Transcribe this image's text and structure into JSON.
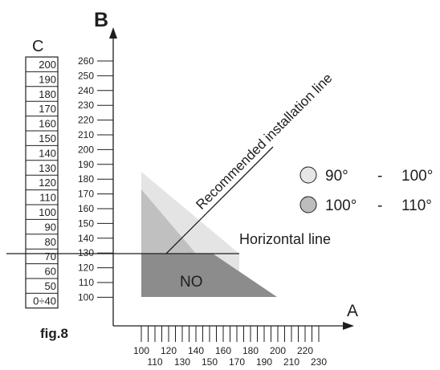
{
  "axis_b_label": "B",
  "axis_a_label": "A",
  "axis_c_label": "C",
  "figure_label": "fig.8",
  "region_label": "NO",
  "recommended_line_label": "Recommended installation line",
  "horizontal_line_label": "Horizontal line",
  "c_scale": [
    "200",
    "190",
    "180",
    "170",
    "160",
    "150",
    "140",
    "130",
    "120",
    "110",
    "100",
    "90",
    "80",
    "70",
    "60",
    "50",
    "0÷40"
  ],
  "b_ticks": [
    "260",
    "250",
    "240",
    "230",
    "220",
    "210",
    "200",
    "190",
    "180",
    "170",
    "160",
    "150",
    "140",
    "130",
    "120",
    "110",
    "100"
  ],
  "a_ticks_upper": [
    "100",
    "120",
    "140",
    "160",
    "180",
    "200",
    "220"
  ],
  "a_ticks_lower": [
    "110",
    "130",
    "150",
    "170",
    "190",
    "210",
    "230"
  ],
  "legend": [
    {
      "angle_from": "90°",
      "dash": "-",
      "angle_to": "100°",
      "color": "#e6e6e6"
    },
    {
      "angle_from": "100°",
      "dash": "-",
      "angle_to": "110°",
      "color": "#bdbdbd"
    }
  ],
  "colors": {
    "light_region": "#e4e4e4",
    "mid_region": "#c0c0c0",
    "dark_region": "#8c8c8c",
    "ink": "#1e1e1e"
  }
}
